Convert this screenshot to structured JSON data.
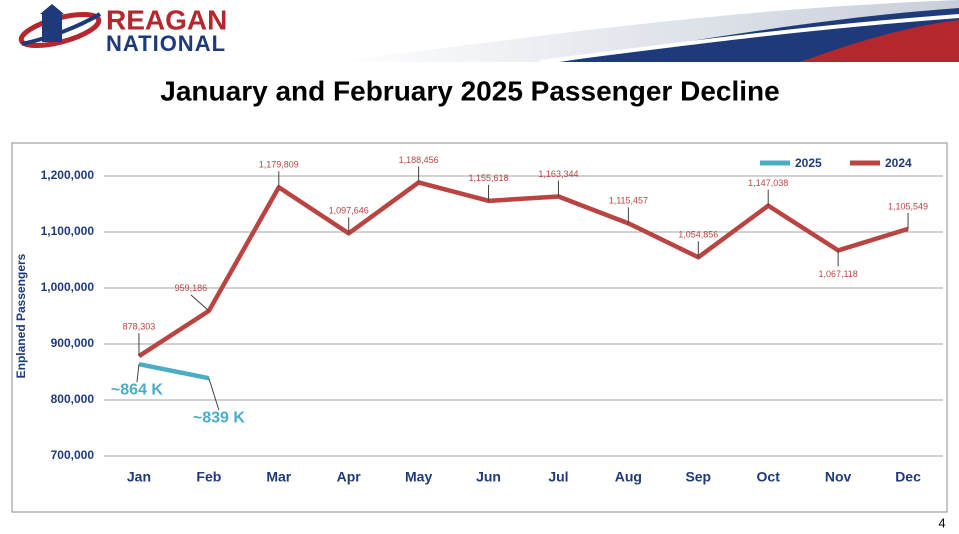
{
  "header": {
    "logo_top": "REAGAN",
    "logo_bottom": "NATIONAL"
  },
  "page_number": 4,
  "chart_data": {
    "type": "line",
    "title": "January and February 2025 Passenger Decline",
    "y_label": "Enplaned Passengers",
    "categories": [
      "Jan",
      "Feb",
      "Mar",
      "Apr",
      "May",
      "Jun",
      "Jul",
      "Aug",
      "Sep",
      "Oct",
      "Nov",
      "Dec"
    ],
    "series": [
      {
        "name": "2025",
        "color": "#4bacc6",
        "values": [
          864000,
          839000,
          null,
          null,
          null,
          null,
          null,
          null,
          null,
          null,
          null,
          null
        ],
        "value_labels": [
          "~864 K",
          "~839 K",
          null,
          null,
          null,
          null,
          null,
          null,
          null,
          null,
          null,
          null
        ]
      },
      {
        "name": "2024",
        "color": "#b94442",
        "values": [
          878303,
          959186,
          1179809,
          1097646,
          1188456,
          1155618,
          1163344,
          1115457,
          1054856,
          1147038,
          1067118,
          1105549
        ],
        "value_labels": [
          "878,303",
          "959,186",
          "1,179,809",
          "1,097,646",
          "1,188,456",
          "1,155,618",
          "1,163,344",
          "1,115,457",
          "1,054,856",
          "1,147,038",
          "1,067,118",
          "1,105,549"
        ]
      }
    ],
    "ylim": [
      700000,
      1200000
    ],
    "yticks": [
      {
        "value": 700000,
        "label": "700,000"
      },
      {
        "value": 800000,
        "label": "800,000"
      },
      {
        "value": 900000,
        "label": "900,000"
      },
      {
        "value": 1000000,
        "label": "1,000,000"
      },
      {
        "value": 1100000,
        "label": "1,100,000"
      },
      {
        "value": 1200000,
        "label": "1,200,000"
      }
    ],
    "grid": true,
    "legend": "top-right"
  }
}
